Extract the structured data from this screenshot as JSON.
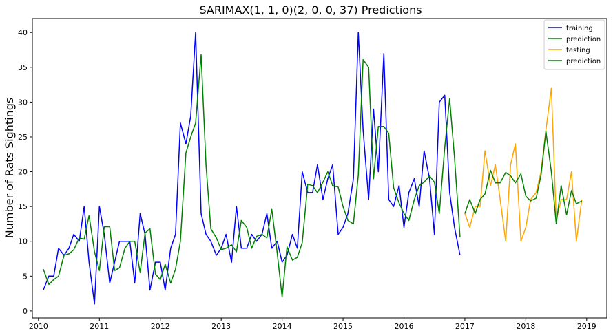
{
  "chart_data": {
    "type": "line",
    "title": "SARIMAX(1, 1, 0)(2, 0, 0, 37) Predictions",
    "xlabel": "",
    "ylabel": "Number of Rats Sightings",
    "xlim": [
      2009.9,
      2019.33
    ],
    "ylim": [
      -1,
      42
    ],
    "xticks": [
      2010,
      2011,
      2012,
      2013,
      2014,
      2015,
      2016,
      2017,
      2018,
      2019
    ],
    "yticks": [
      0,
      5,
      10,
      15,
      20,
      25,
      30,
      35,
      40
    ],
    "grid": false,
    "legend_position": "top-right",
    "series": [
      {
        "name": "training",
        "color": "#0000ff",
        "x": [
          2010.08,
          2010.17,
          2010.25,
          2010.33,
          2010.42,
          2010.5,
          2010.58,
          2010.67,
          2010.75,
          2010.83,
          2010.92,
          2011.0,
          2011.08,
          2011.17,
          2011.25,
          2011.33,
          2011.42,
          2011.5,
          2011.58,
          2011.67,
          2011.75,
          2011.83,
          2011.92,
          2012.0,
          2012.08,
          2012.17,
          2012.25,
          2012.33,
          2012.42,
          2012.5,
          2012.58,
          2012.67,
          2012.75,
          2012.83,
          2012.92,
          2013.0,
          2013.08,
          2013.17,
          2013.25,
          2013.33,
          2013.42,
          2013.5,
          2013.58,
          2013.67,
          2013.75,
          2013.83,
          2013.92,
          2014.0,
          2014.08,
          2014.17,
          2014.25,
          2014.33,
          2014.42,
          2014.5,
          2014.58,
          2014.67,
          2014.75,
          2014.83,
          2014.92,
          2015.0,
          2015.08,
          2015.17,
          2015.25,
          2015.33,
          2015.42,
          2015.5,
          2015.58,
          2015.67,
          2015.75,
          2015.83,
          2015.92,
          2016.0,
          2016.08,
          2016.17,
          2016.25,
          2016.33,
          2016.42,
          2016.5,
          2016.58,
          2016.67,
          2016.75,
          2016.83,
          2016.92
        ],
        "y": [
          3,
          5,
          5,
          9,
          8,
          9,
          11,
          10,
          15,
          7,
          1,
          15,
          11,
          4,
          7,
          10,
          10,
          10,
          4,
          14,
          11,
          3,
          7,
          7,
          3,
          9,
          11,
          27,
          24,
          28,
          40,
          14,
          11,
          10,
          8,
          9,
          11,
          7,
          15,
          9,
          9,
          11,
          10,
          11,
          14,
          9,
          10,
          7,
          8,
          11,
          9,
          20,
          17,
          17,
          21,
          16,
          19,
          21,
          11,
          12,
          14,
          19,
          40,
          26,
          16,
          29,
          20,
          37,
          16,
          15,
          18,
          12,
          17,
          19,
          15,
          23,
          19,
          11,
          30,
          31,
          17,
          12,
          8
        ]
      },
      {
        "name": "prediction",
        "color": "#008000",
        "x": [
          2010.08,
          2010.17,
          2010.25,
          2010.33,
          2010.42,
          2010.5,
          2010.58,
          2010.67,
          2010.75,
          2010.83,
          2010.92,
          2011.0,
          2011.08,
          2011.17,
          2011.25,
          2011.33,
          2011.42,
          2011.5,
          2011.58,
          2011.67,
          2011.75,
          2011.83,
          2011.92,
          2012.0,
          2012.08,
          2012.17,
          2012.25,
          2012.33,
          2012.42,
          2012.5,
          2012.58,
          2012.67,
          2012.75,
          2012.83,
          2012.92,
          2013.0,
          2013.08,
          2013.17,
          2013.25,
          2013.33,
          2013.42,
          2013.5,
          2013.58,
          2013.67,
          2013.75,
          2013.83,
          2013.92,
          2014.0,
          2014.08,
          2014.17,
          2014.25,
          2014.33,
          2014.42,
          2014.5,
          2014.58,
          2014.67,
          2014.75,
          2014.83,
          2014.92,
          2015.0,
          2015.08,
          2015.17,
          2015.25,
          2015.33,
          2015.42,
          2015.5,
          2015.58,
          2015.67,
          2015.75,
          2015.83,
          2015.92,
          2016.0,
          2016.08,
          2016.17,
          2016.25,
          2016.33,
          2016.42,
          2016.5,
          2016.58,
          2016.67,
          2016.75,
          2016.83,
          2016.92
        ],
        "y": [
          6,
          3.8,
          4.5,
          5,
          8,
          8.2,
          8.8,
          10.5,
          10.3,
          13.7,
          8.5,
          5.8,
          12.1,
          12.1,
          5.8,
          6.2,
          9,
          10,
          10,
          5.5,
          11.2,
          11.8,
          5.3,
          4.5,
          6.7,
          4,
          6,
          10,
          22.7,
          25,
          27,
          36.8,
          21,
          11.8,
          10.5,
          8.8,
          9,
          9.5,
          8.5,
          13,
          12,
          9,
          10.7,
          11,
          10.5,
          14.6,
          8.3,
          2,
          9.2,
          7.3,
          7.7,
          9.8,
          18.2,
          18,
          17,
          18.5,
          20,
          18,
          17.8,
          15,
          13,
          12.5,
          19.5,
          36.1,
          35,
          19,
          26.5,
          26.5,
          25.5,
          17.7,
          15.5,
          14,
          13,
          16,
          18,
          18.5,
          19.4,
          18.5,
          14,
          23.5,
          30.5,
          22,
          10.6
        ]
      },
      {
        "name": "testing",
        "color": "#ffa500",
        "x": [
          2017.0,
          2017.08,
          2017.17,
          2017.25,
          2017.33,
          2017.42,
          2017.5,
          2017.58,
          2017.67,
          2017.75,
          2017.83,
          2017.92,
          2018.0,
          2018.08,
          2018.17,
          2018.25,
          2018.33,
          2018.42,
          2018.5,
          2018.58,
          2018.67,
          2018.75,
          2018.83,
          2018.92
        ],
        "y": [
          14,
          12,
          15,
          15,
          23,
          18,
          21,
          16,
          10,
          21,
          24,
          10,
          12,
          16,
          17,
          20,
          26,
          32,
          13,
          16,
          16,
          20,
          10,
          16
        ]
      },
      {
        "name": "prediction",
        "color": "#008000",
        "x": [
          2017.0,
          2017.08,
          2017.17,
          2017.25,
          2017.33,
          2017.42,
          2017.5,
          2017.58,
          2017.67,
          2017.75,
          2017.83,
          2017.92,
          2018.0,
          2018.08,
          2018.17,
          2018.25,
          2018.33,
          2018.42,
          2018.5,
          2018.58,
          2018.67,
          2018.75,
          2018.83,
          2018.92
        ],
        "y": [
          14,
          16,
          14,
          16,
          16.8,
          20.2,
          18.4,
          18.4,
          19.9,
          19.4,
          18.4,
          19.7,
          16.5,
          15.8,
          16.2,
          19.5,
          25.8,
          20,
          12.5,
          18,
          13.8,
          17.3,
          15.4,
          15.8
        ]
      }
    ]
  }
}
